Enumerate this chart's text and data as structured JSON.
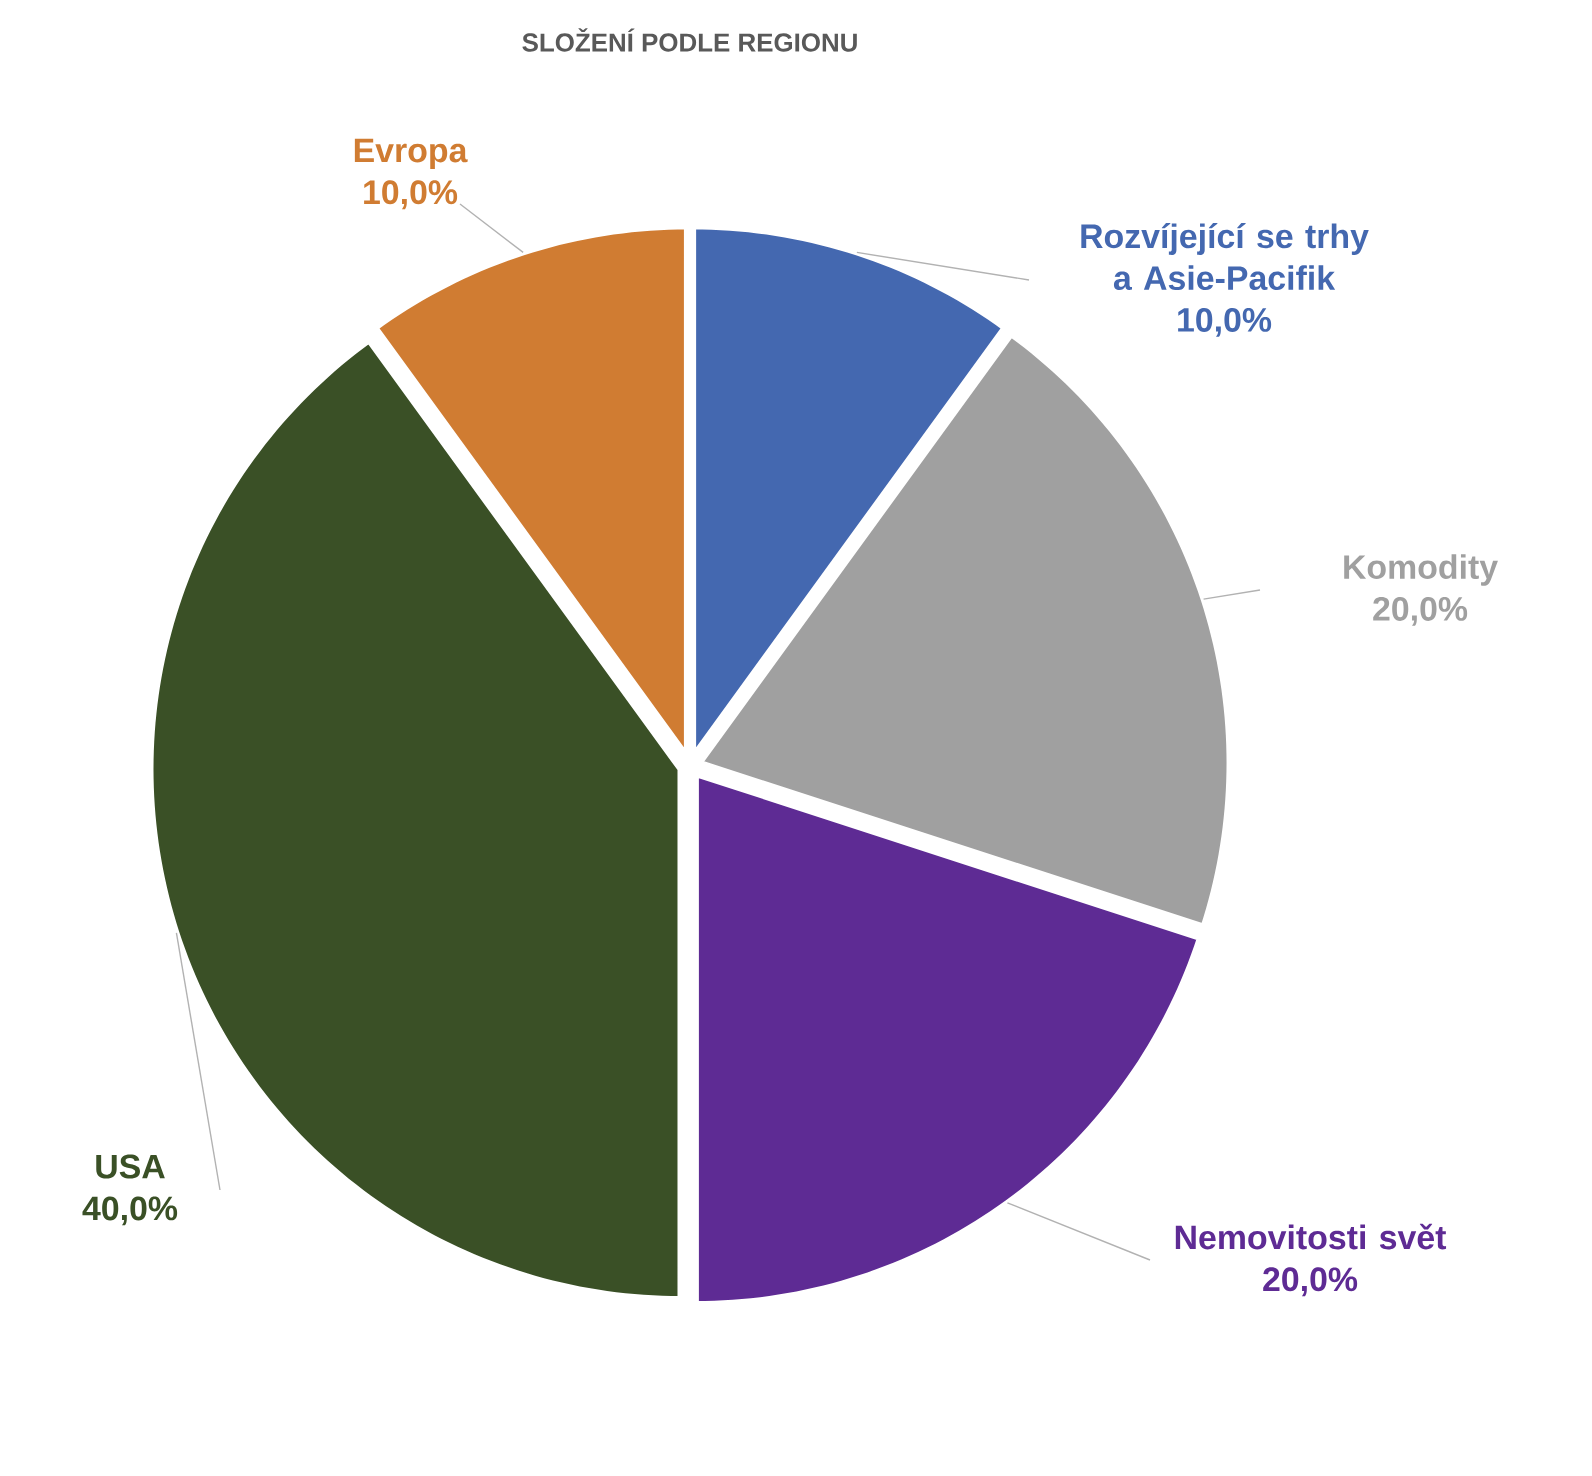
{
  "chart_data": {
    "type": "pie",
    "title": "SLOŽENÍ PODLE REGIONU",
    "categories": [
      "Rozvíjející se trhy a Asie-Pacifik",
      "Komodity",
      "Nemovitosti svět",
      "USA",
      "Evropa"
    ],
    "values": [
      10,
      20,
      20,
      40,
      10
    ],
    "value_labels": [
      "10,0%",
      "20,0%",
      "20,0%",
      "40,0%",
      "10,0%"
    ],
    "colors": [
      "#4468b0",
      "#a0a0a0",
      "#5e2b94",
      "#3a5026",
      "#d07c32"
    ]
  }
}
